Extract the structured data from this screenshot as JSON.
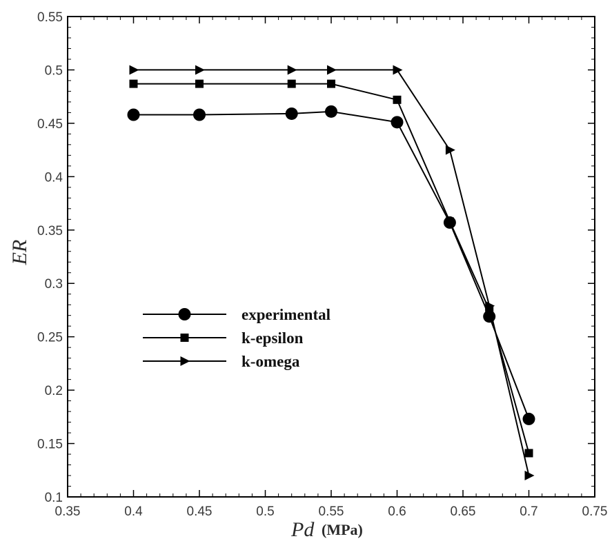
{
  "chart_data": {
    "type": "line",
    "xlabel": "Pd",
    "xlabel_unit": "(MPa)",
    "ylabel": "ER",
    "xlim": [
      0.35,
      0.75
    ],
    "ylim": [
      0.1,
      0.55
    ],
    "x_ticks": [
      "0.35",
      "0.4",
      "0.45",
      "0.5",
      "0.55",
      "0.6",
      "0.65",
      "0.7",
      "0.75"
    ],
    "y_ticks": [
      "0.1",
      "0.15",
      "0.2",
      "0.25",
      "0.3",
      "0.35",
      "0.4",
      "0.45",
      "0.5",
      "0.55"
    ],
    "grid": false,
    "legend_position": "center-left",
    "series": [
      {
        "name": "experimental",
        "marker": "circle",
        "color": "#000000",
        "x": [
          0.4,
          0.45,
          0.52,
          0.55,
          0.6,
          0.64,
          0.67,
          0.7
        ],
        "y": [
          0.458,
          0.458,
          0.459,
          0.461,
          0.451,
          0.357,
          0.269,
          0.173
        ]
      },
      {
        "name": "k-epsilon",
        "marker": "square",
        "color": "#000000",
        "x": [
          0.4,
          0.45,
          0.52,
          0.55,
          0.6,
          0.64,
          0.67,
          0.7
        ],
        "y": [
          0.487,
          0.487,
          0.487,
          0.487,
          0.472,
          0.358,
          0.275,
          0.141
        ]
      },
      {
        "name": "k-omega",
        "marker": "triangle-right",
        "color": "#000000",
        "x": [
          0.4,
          0.45,
          0.52,
          0.55,
          0.6,
          0.64,
          0.67,
          0.7
        ],
        "y": [
          0.5,
          0.5,
          0.5,
          0.5,
          0.5,
          0.425,
          0.279,
          0.12
        ]
      }
    ]
  }
}
